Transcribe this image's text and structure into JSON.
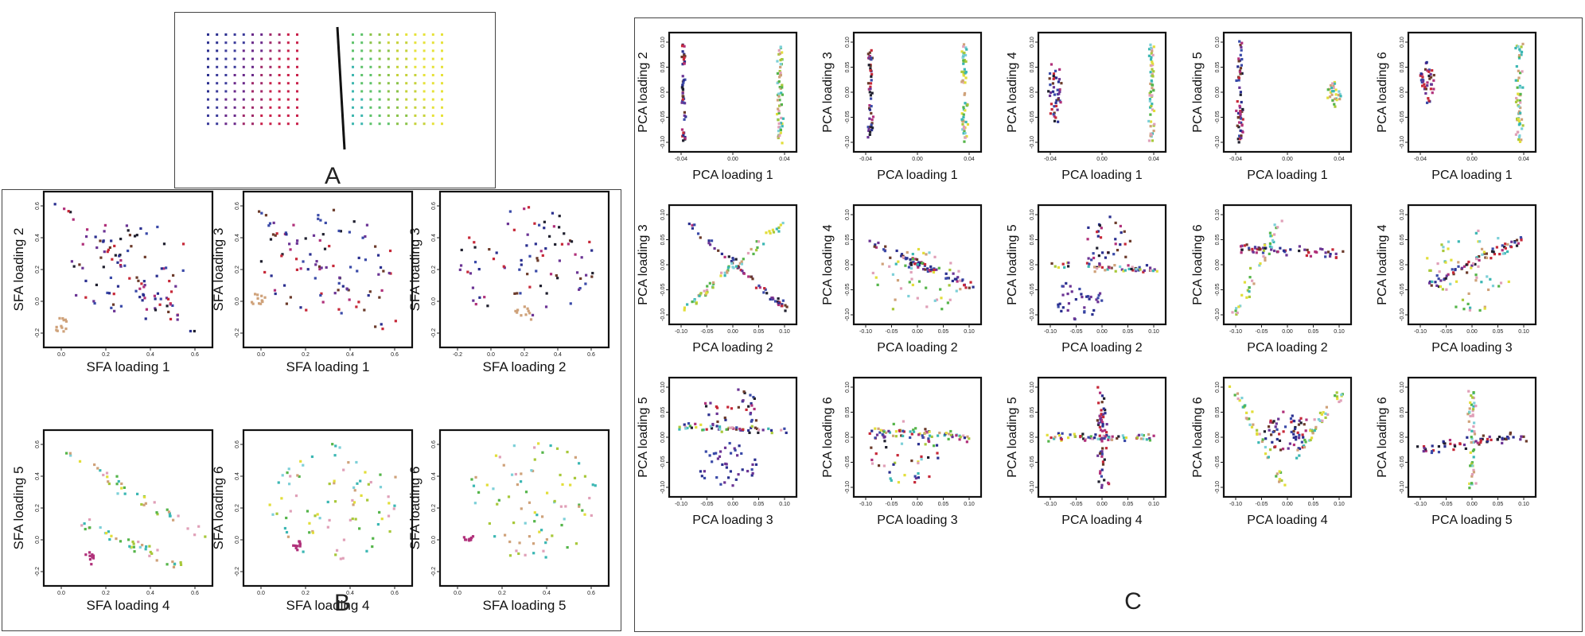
{
  "figure": {
    "panel_a_letter": "A",
    "panel_b_letter": "B",
    "panel_c_letter": "C"
  },
  "panel_b": {
    "plots": [
      {
        "xlabel": "SFA loading 1",
        "ylabel": "SFA loading 2",
        "xticks": [
          "0.0",
          "0.2",
          "0.4",
          "0.6"
        ],
        "yticks": [
          "0.6",
          "0.4",
          "0.2",
          "0.0",
          "-0.2"
        ]
      },
      {
        "xlabel": "SFA loading 1",
        "ylabel": "SFA loading 3",
        "xticks": [
          "0.0",
          "0.2",
          "0.4",
          "0.6"
        ],
        "yticks": [
          "0.6",
          "0.4",
          "0.2",
          "0.0",
          "-0.2"
        ]
      },
      {
        "xlabel": "SFA loading 2",
        "ylabel": "SFA loading 3",
        "xticks": [
          "-0.2",
          "0.0",
          "0.2",
          "0.4",
          "0.6"
        ],
        "yticks": [
          "0.6",
          "0.4",
          "0.2",
          "0.0",
          "-0.2"
        ]
      },
      {
        "xlabel": "SFA loading 4",
        "ylabel": "SFA loading 5",
        "xticks": [
          "0.0",
          "0.2",
          "0.4",
          "0.6"
        ],
        "yticks": [
          "0.6",
          "0.4",
          "0.2",
          "0.0",
          "-0.2"
        ]
      },
      {
        "xlabel": "SFA loading 4",
        "ylabel": "SFA loading 6",
        "xticks": [
          "0.0",
          "0.2",
          "0.4",
          "0.6"
        ],
        "yticks": [
          "0.6",
          "0.4",
          "0.2",
          "0.0",
          "-0.2"
        ]
      },
      {
        "xlabel": "SFA loading 5",
        "ylabel": "SFA loading 6",
        "xticks": [
          "0.0",
          "0.2",
          "0.4",
          "0.6"
        ],
        "yticks": [
          "0.6",
          "0.4",
          "0.2",
          "0.0",
          "-0.2"
        ]
      }
    ]
  },
  "panel_c": {
    "plots": [
      {
        "xlabel": "PCA loading 1",
        "ylabel": "PCA loading 2",
        "xticks": [
          "-0.04",
          "0.00",
          "0.04"
        ],
        "yticks": [
          "0.10",
          "0.05",
          "0.00",
          "-0.05",
          "-0.10"
        ]
      },
      {
        "xlabel": "PCA loading 1",
        "ylabel": "PCA loading 3",
        "xticks": [
          "-0.04",
          "0.00",
          "0.04"
        ],
        "yticks": [
          "0.10",
          "0.05",
          "0.00",
          "-0.05",
          "-0.10"
        ]
      },
      {
        "xlabel": "PCA loading 1",
        "ylabel": "PCA loading 4",
        "xticks": [
          "-0.04",
          "0.00",
          "0.04"
        ],
        "yticks": [
          "0.10",
          "0.05",
          "0.00",
          "-0.05",
          "-0.10"
        ]
      },
      {
        "xlabel": "PCA loading 1",
        "ylabel": "PCA loading 5",
        "xticks": [
          "-0.04",
          "0.00",
          "0.04"
        ],
        "yticks": [
          "0.10",
          "0.05",
          "0.00",
          "-0.05",
          "-0.10"
        ]
      },
      {
        "xlabel": "PCA loading 1",
        "ylabel": "PCA loading 6",
        "xticks": [
          "-0.04",
          "0.00",
          "0.04"
        ],
        "yticks": [
          "0.10",
          "0.05",
          "0.00",
          "-0.05",
          "-0.10"
        ]
      },
      {
        "xlabel": "PCA loading 2",
        "ylabel": "PCA loading 3",
        "xticks": [
          "-0.10",
          "-0.05",
          "0.00",
          "0.05",
          "0.10"
        ],
        "yticks": [
          "0.10",
          "0.05",
          "0.00",
          "-0.05",
          "-0.10"
        ]
      },
      {
        "xlabel": "PCA loading 2",
        "ylabel": "PCA loading 4",
        "xticks": [
          "-0.10",
          "-0.05",
          "0.00",
          "0.05",
          "0.10"
        ],
        "yticks": [
          "0.10",
          "0.05",
          "0.00",
          "-0.05",
          "-0.10"
        ]
      },
      {
        "xlabel": "PCA loading 2",
        "ylabel": "PCA loading 5",
        "xticks": [
          "-0.10",
          "-0.05",
          "0.00",
          "0.05",
          "0.10"
        ],
        "yticks": [
          "0.10",
          "0.05",
          "0.00",
          "-0.05",
          "-0.10"
        ]
      },
      {
        "xlabel": "PCA loading 2",
        "ylabel": "PCA loading 6",
        "xticks": [
          "-0.10",
          "-0.05",
          "0.00",
          "0.05",
          "0.10"
        ],
        "yticks": [
          "0.10",
          "0.05",
          "0.00",
          "-0.05",
          "-0.10"
        ]
      },
      {
        "xlabel": "PCA loading 3",
        "ylabel": "PCA loading 4",
        "xticks": [
          "-0.10",
          "-0.05",
          "0.00",
          "0.05",
          "0.10"
        ],
        "yticks": [
          "0.10",
          "0.05",
          "0.00",
          "-0.05",
          "-0.10"
        ]
      },
      {
        "xlabel": "PCA loading 3",
        "ylabel": "PCA loading 5",
        "xticks": [
          "-0.10",
          "-0.05",
          "0.00",
          "0.05",
          "0.10"
        ],
        "yticks": [
          "0.10",
          "0.05",
          "0.00",
          "-0.05",
          "-0.10"
        ]
      },
      {
        "xlabel": "PCA loading 3",
        "ylabel": "PCA loading 6",
        "xticks": [
          "-0.10",
          "-0.05",
          "0.00",
          "0.05",
          "0.10"
        ],
        "yticks": [
          "0.10",
          "0.05",
          "0.00",
          "-0.05",
          "-0.10"
        ]
      },
      {
        "xlabel": "PCA loading 4",
        "ylabel": "PCA loading 5",
        "xticks": [
          "-0.10",
          "-0.05",
          "0.00",
          "0.05",
          "0.10"
        ],
        "yticks": [
          "0.10",
          "0.05",
          "0.00",
          "-0.05",
          "-0.10"
        ]
      },
      {
        "xlabel": "PCA loading 4",
        "ylabel": "PCA loading 6",
        "xticks": [
          "-0.10",
          "-0.05",
          "0.00",
          "0.05",
          "0.10"
        ],
        "yticks": [
          "0.10",
          "0.05",
          "0.00",
          "-0.05",
          "-0.10"
        ]
      },
      {
        "xlabel": "PCA loading 5",
        "ylabel": "PCA loading 6",
        "xticks": [
          "-0.10",
          "-0.05",
          "0.00",
          "0.05",
          "0.10"
        ],
        "yticks": [
          "0.10",
          "0.05",
          "0.00",
          "-0.05",
          "-0.10"
        ]
      }
    ]
  },
  "chart_data": [
    {
      "type": "scatter",
      "panel": "A",
      "description_of_points": "regular 2D grid of sample positions",
      "grid": {
        "rows": 12,
        "cols_per_side": 11
      },
      "left_group_colors": [
        "#2b2f8f",
        "#3b3b9a",
        "#6a2a8a",
        "#a02a6a",
        "#c8204a"
      ],
      "right_group_colors": [
        "#3fb7b0",
        "#5ec26a",
        "#8bc34a",
        "#c6d23a",
        "#e6e23a"
      ],
      "divider": "black line between the two groups"
    },
    {
      "type": "scatter",
      "panel": "B",
      "n_plots": 6,
      "xlim": [
        -0.2,
        0.7
      ],
      "ylim": [
        -0.3,
        0.6
      ]
    },
    {
      "type": "scatter",
      "panel": "C",
      "n_plots": 15,
      "xlim": [
        -0.1,
        0.1
      ],
      "ylim": [
        -0.1,
        0.1
      ]
    }
  ],
  "colors": {
    "dark": "#1f1f2e",
    "navy": "#2a2f8f",
    "blue": "#3a4aa8",
    "purple": "#6b3494",
    "magenta": "#b0307a",
    "red": "#c62838",
    "brown": "#6b3a2a",
    "pink": "#e0a0b8",
    "teal": "#3bb7b3",
    "cyan": "#7dd0d8",
    "green": "#55b54a",
    "yellowgreen": "#a8c83a",
    "yellow": "#e2de3a",
    "tan": "#cfa27a"
  }
}
